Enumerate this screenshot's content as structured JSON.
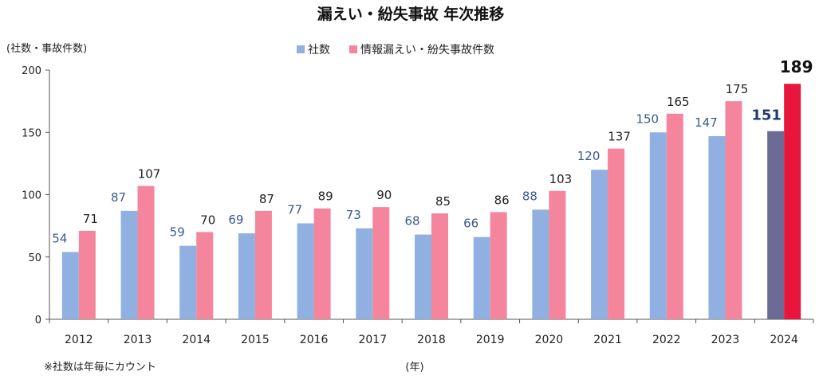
{
  "chart_data": {
    "type": "bar",
    "title": "漏えい・紛失事故 年次推移",
    "ylabel": "(社数・事故件数)",
    "xlabel": "(年)",
    "footnote": "※社数は年毎にカウント",
    "ylim": [
      0,
      200
    ],
    "yticks": [
      0,
      50,
      100,
      150,
      200
    ],
    "grid": false,
    "legend_position": "top-center",
    "categories": [
      "2012",
      "2013",
      "2014",
      "2015",
      "2016",
      "2017",
      "2018",
      "2019",
      "2020",
      "2021",
      "2022",
      "2023",
      "2024"
    ],
    "series": [
      {
        "name": "社数",
        "color": "#8fb0e0",
        "highlight_color": "#6b6b96",
        "label_color": "#3a5a8c",
        "values": [
          54,
          87,
          59,
          69,
          77,
          73,
          68,
          66,
          88,
          120,
          150,
          147,
          151
        ]
      },
      {
        "name": "情報漏えい・紛失事故件数",
        "color": "#f4859c",
        "highlight_color": "#e8163c",
        "label_color": "#222222",
        "values": [
          71,
          107,
          70,
          87,
          89,
          90,
          85,
          86,
          103,
          137,
          165,
          175,
          189
        ]
      }
    ],
    "highlight_category": "2024"
  }
}
